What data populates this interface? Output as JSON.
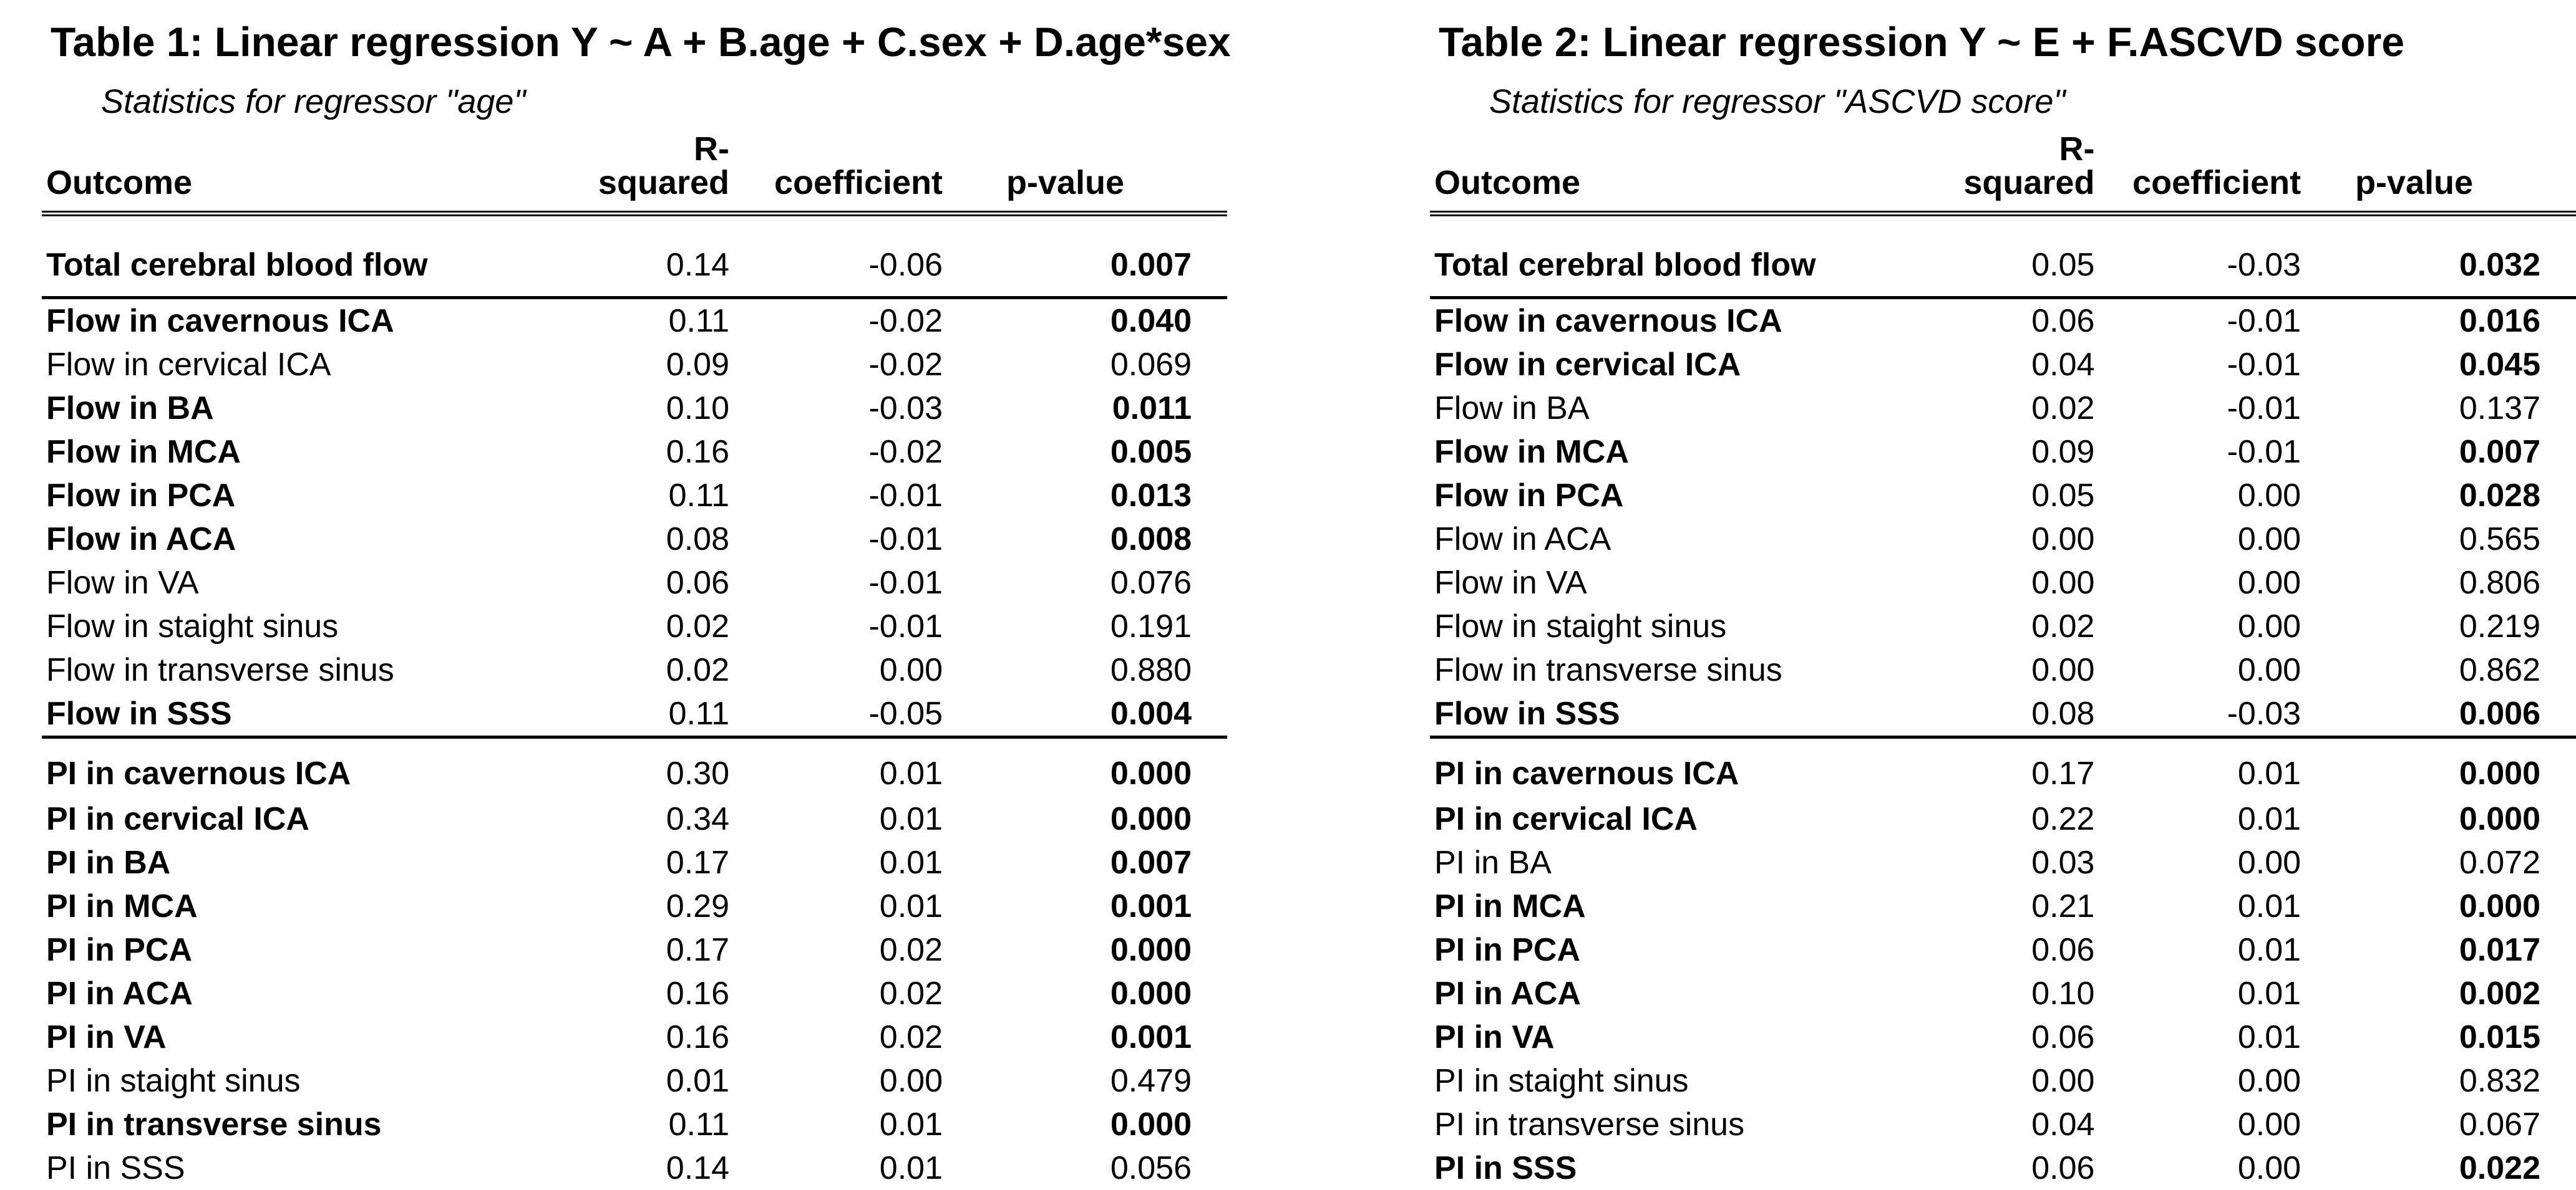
{
  "colors": {
    "text": "#000000",
    "background": "#ffffff",
    "rule": "#000000"
  },
  "tables": [
    {
      "title": "Table 1: Linear regression Y ~ A + B.age + C.sex + D.age*sex",
      "subtitle": "Statistics for regressor \"age\"",
      "columns": [
        "Outcome",
        "R-squared",
        "coefficient",
        "p-value"
      ],
      "rows": [
        {
          "outcome": "Total cerebral blood flow",
          "r_squared": "0.14",
          "coefficient": "-0.06",
          "p_value": "0.007",
          "bold": true,
          "rule_below": true
        },
        {
          "outcome": "Flow in cavernous ICA",
          "r_squared": "0.11",
          "coefficient": "-0.02",
          "p_value": "0.040",
          "bold": true,
          "rule_below": false
        },
        {
          "outcome": "Flow in cervical ICA",
          "r_squared": "0.09",
          "coefficient": "-0.02",
          "p_value": "0.069",
          "bold": false,
          "rule_below": false
        },
        {
          "outcome": "Flow in BA",
          "r_squared": "0.10",
          "coefficient": "-0.03",
          "p_value": "0.011",
          "bold": true,
          "rule_below": false
        },
        {
          "outcome": "Flow in MCA",
          "r_squared": "0.16",
          "coefficient": "-0.02",
          "p_value": "0.005",
          "bold": true,
          "rule_below": false
        },
        {
          "outcome": "Flow in PCA",
          "r_squared": "0.11",
          "coefficient": "-0.01",
          "p_value": "0.013",
          "bold": true,
          "rule_below": false
        },
        {
          "outcome": "Flow in ACA",
          "r_squared": "0.08",
          "coefficient": "-0.01",
          "p_value": "0.008",
          "bold": true,
          "rule_below": false
        },
        {
          "outcome": "Flow in VA",
          "r_squared": "0.06",
          "coefficient": "-0.01",
          "p_value": "0.076",
          "bold": false,
          "rule_below": false
        },
        {
          "outcome": "Flow in staight sinus",
          "r_squared": "0.02",
          "coefficient": "-0.01",
          "p_value": "0.191",
          "bold": false,
          "rule_below": false
        },
        {
          "outcome": "Flow in transverse sinus",
          "r_squared": "0.02",
          "coefficient": "0.00",
          "p_value": "0.880",
          "bold": false,
          "rule_below": false
        },
        {
          "outcome": "Flow in SSS",
          "r_squared": "0.11",
          "coefficient": "-0.05",
          "p_value": "0.004",
          "bold": true,
          "rule_below": true
        },
        {
          "outcome": "PI in cavernous ICA",
          "r_squared": "0.30",
          "coefficient": "0.01",
          "p_value": "0.000",
          "bold": true,
          "rule_below": false
        },
        {
          "outcome": "PI in cervical ICA",
          "r_squared": "0.34",
          "coefficient": "0.01",
          "p_value": "0.000",
          "bold": true,
          "rule_below": false
        },
        {
          "outcome": "PI in BA",
          "r_squared": "0.17",
          "coefficient": "0.01",
          "p_value": "0.007",
          "bold": true,
          "rule_below": false
        },
        {
          "outcome": "PI in MCA",
          "r_squared": "0.29",
          "coefficient": "0.01",
          "p_value": "0.001",
          "bold": true,
          "rule_below": false
        },
        {
          "outcome": "PI in PCA",
          "r_squared": "0.17",
          "coefficient": "0.02",
          "p_value": "0.000",
          "bold": true,
          "rule_below": false
        },
        {
          "outcome": "PI in ACA",
          "r_squared": "0.16",
          "coefficient": "0.02",
          "p_value": "0.000",
          "bold": true,
          "rule_below": false
        },
        {
          "outcome": "PI in VA",
          "r_squared": "0.16",
          "coefficient": "0.02",
          "p_value": "0.001",
          "bold": true,
          "rule_below": false
        },
        {
          "outcome": "PI in staight sinus",
          "r_squared": "0.01",
          "coefficient": "0.00",
          "p_value": "0.479",
          "bold": false,
          "rule_below": false
        },
        {
          "outcome": "PI in transverse sinus",
          "r_squared": "0.11",
          "coefficient": "0.01",
          "p_value": "0.000",
          "bold": true,
          "rule_below": false
        },
        {
          "outcome": "PI in SSS",
          "r_squared": "0.14",
          "coefficient": "0.01",
          "p_value": "0.056",
          "bold": false,
          "rule_below": false
        }
      ]
    },
    {
      "title": "Table 2: Linear regression Y ~ E + F.ASCVD score",
      "subtitle": "Statistics for regressor \"ASCVD score\"",
      "columns": [
        "Outcome",
        "R-squared",
        "coefficient",
        "p-value"
      ],
      "rows": [
        {
          "outcome": "Total cerebral blood flow",
          "r_squared": "0.05",
          "coefficient": "-0.03",
          "p_value": "0.032",
          "bold": true,
          "rule_below": true
        },
        {
          "outcome": "Flow in cavernous ICA",
          "r_squared": "0.06",
          "coefficient": "-0.01",
          "p_value": "0.016",
          "bold": true,
          "rule_below": false
        },
        {
          "outcome": "Flow in cervical ICA",
          "r_squared": "0.04",
          "coefficient": "-0.01",
          "p_value": "0.045",
          "bold": true,
          "rule_below": false
        },
        {
          "outcome": "Flow in BA",
          "r_squared": "0.02",
          "coefficient": "-0.01",
          "p_value": "0.137",
          "bold": false,
          "rule_below": false
        },
        {
          "outcome": "Flow in MCA",
          "r_squared": "0.09",
          "coefficient": "-0.01",
          "p_value": "0.007",
          "bold": true,
          "rule_below": false
        },
        {
          "outcome": "Flow in PCA",
          "r_squared": "0.05",
          "coefficient": "0.00",
          "p_value": "0.028",
          "bold": true,
          "rule_below": false
        },
        {
          "outcome": "Flow in ACA",
          "r_squared": "0.00",
          "coefficient": "0.00",
          "p_value": "0.565",
          "bold": false,
          "rule_below": false
        },
        {
          "outcome": "Flow in VA",
          "r_squared": "0.00",
          "coefficient": "0.00",
          "p_value": "0.806",
          "bold": false,
          "rule_below": false
        },
        {
          "outcome": "Flow in staight sinus",
          "r_squared": "0.02",
          "coefficient": "0.00",
          "p_value": "0.219",
          "bold": false,
          "rule_below": false
        },
        {
          "outcome": "Flow in transverse sinus",
          "r_squared": "0.00",
          "coefficient": "0.00",
          "p_value": "0.862",
          "bold": false,
          "rule_below": false
        },
        {
          "outcome": "Flow in SSS",
          "r_squared": "0.08",
          "coefficient": "-0.03",
          "p_value": "0.006",
          "bold": true,
          "rule_below": true
        },
        {
          "outcome": "PI in cavernous ICA",
          "r_squared": "0.17",
          "coefficient": "0.01",
          "p_value": "0.000",
          "bold": true,
          "rule_below": false
        },
        {
          "outcome": "PI in cervical ICA",
          "r_squared": "0.22",
          "coefficient": "0.01",
          "p_value": "0.000",
          "bold": true,
          "rule_below": false
        },
        {
          "outcome": "PI in BA",
          "r_squared": "0.03",
          "coefficient": "0.00",
          "p_value": "0.072",
          "bold": false,
          "rule_below": false
        },
        {
          "outcome": "PI in MCA",
          "r_squared": "0.21",
          "coefficient": "0.01",
          "p_value": "0.000",
          "bold": true,
          "rule_below": false
        },
        {
          "outcome": "PI in PCA",
          "r_squared": "0.06",
          "coefficient": "0.01",
          "p_value": "0.017",
          "bold": true,
          "rule_below": false
        },
        {
          "outcome": "PI in ACA",
          "r_squared": "0.10",
          "coefficient": "0.01",
          "p_value": "0.002",
          "bold": true,
          "rule_below": false
        },
        {
          "outcome": "PI in VA",
          "r_squared": "0.06",
          "coefficient": "0.01",
          "p_value": "0.015",
          "bold": true,
          "rule_below": false
        },
        {
          "outcome": "PI in staight sinus",
          "r_squared": "0.00",
          "coefficient": "0.00",
          "p_value": "0.832",
          "bold": false,
          "rule_below": false
        },
        {
          "outcome": "PI in transverse sinus",
          "r_squared": "0.04",
          "coefficient": "0.00",
          "p_value": "0.067",
          "bold": false,
          "rule_below": false
        },
        {
          "outcome": "PI in SSS",
          "r_squared": "0.06",
          "coefficient": "0.00",
          "p_value": "0.022",
          "bold": true,
          "rule_below": false
        }
      ]
    }
  ]
}
